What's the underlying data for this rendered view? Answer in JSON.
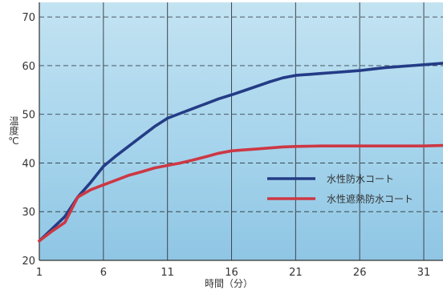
{
  "chart_data": {
    "type": "line",
    "title": "",
    "xlabel": "時間（分）",
    "ylabel": "温度℃",
    "xlim": [
      1,
      32.5
    ],
    "ylim": [
      20,
      73
    ],
    "xticks": [
      1,
      6,
      11,
      16,
      21,
      26,
      31
    ],
    "yticks": [
      20,
      30,
      40,
      50,
      60,
      70
    ],
    "grid": true,
    "legend_position": "right",
    "series": [
      {
        "name": "水性防水コート",
        "color": "#243c86",
        "x": [
          1,
          2,
          3,
          4,
          5,
          6,
          7,
          8,
          9,
          10,
          11,
          12,
          13,
          14,
          15,
          16,
          17,
          18,
          19,
          20,
          21,
          22,
          23,
          24,
          25,
          26,
          27,
          28,
          29,
          30,
          31,
          32.5
        ],
        "y": [
          24,
          26.5,
          29,
          33,
          36,
          39.3,
          41.5,
          43.5,
          45.5,
          47.5,
          49.2,
          50.2,
          51.2,
          52.2,
          53.2,
          54,
          54.9,
          55.8,
          56.7,
          57.5,
          58,
          58.2,
          58.4,
          58.6,
          58.8,
          59,
          59.3,
          59.6,
          59.8,
          60,
          60.2,
          60.5
        ]
      },
      {
        "name": "水性遮熱防水コート",
        "color": "#cc3844",
        "x": [
          1,
          2,
          3,
          4,
          5,
          6,
          7,
          8,
          9,
          10,
          11,
          12,
          13,
          14,
          15,
          16,
          17,
          18,
          19,
          20,
          21,
          22,
          23,
          24,
          25,
          26,
          27,
          28,
          29,
          30,
          31,
          32.5
        ],
        "y": [
          24,
          26,
          27.8,
          33,
          34.5,
          35.5,
          36.5,
          37.5,
          38.2,
          39,
          39.5,
          40,
          40.6,
          41.3,
          42,
          42.5,
          42.7,
          42.9,
          43.1,
          43.3,
          43.4,
          43.45,
          43.5,
          43.5,
          43.5,
          43.5,
          43.5,
          43.5,
          43.5,
          43.5,
          43.5,
          43.6
        ]
      }
    ]
  }
}
